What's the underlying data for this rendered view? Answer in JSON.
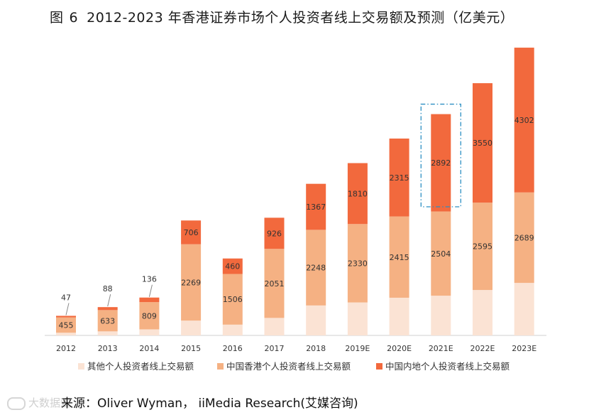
{
  "title": {
    "figure_label": "图",
    "figure_number": "6",
    "text": "2012-2023 年香港证券市场个人投资者线上交易额及预测（亿美元）"
  },
  "source": "来源：Oliver Wyman，  iiMedia Research(艾媒咨询)",
  "watermark": "大数据观",
  "chart_data": {
    "type": "bar",
    "stacked": true,
    "title": "2012-2023 年香港证券市场个人投资者线上交易额及预测（亿美元）",
    "categories": [
      "2012",
      "2013",
      "2014",
      "2015",
      "2016",
      "2017",
      "2018",
      "2019E",
      "2020E",
      "2021E",
      "2022E",
      "2023E"
    ],
    "series": [
      {
        "name": "其他个人投资者线上交易额",
        "color": "#fbe3d4",
        "values": [
          80,
          120,
          180,
          440,
          320,
          520,
          890,
          980,
          1120,
          1180,
          1350,
          1560
        ],
        "labels_shown": false
      },
      {
        "name": "中国香港个人投资者线上交易额",
        "color": "#f5b183",
        "values": [
          455,
          633,
          809,
          2269,
          1506,
          2051,
          2248,
          2330,
          2415,
          2504,
          2595,
          2689
        ],
        "labels_shown": true
      },
      {
        "name": "中国内地个人投资者线上交易额",
        "color": "#f2693d",
        "values": [
          47,
          88,
          136,
          706,
          460,
          926,
          1367,
          1810,
          2315,
          2892,
          3550,
          4302
        ],
        "labels_shown": true
      }
    ],
    "legend_position": "bottom",
    "highlight_category": "2021E",
    "ylim": [
      0,
      8700
    ],
    "grid": false
  }
}
